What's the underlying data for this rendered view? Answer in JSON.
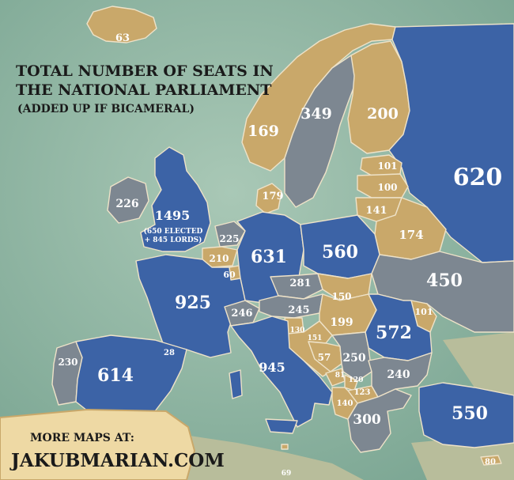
{
  "title": {
    "line1": "TOTAL NUMBER OF SEATS IN",
    "line2": "THE NATIONAL PARLIAMENT",
    "line3": "(ADDED UP IF BICAMERAL)"
  },
  "footer": {
    "line1": "MORE MAPS AT:",
    "line2": "JAKUBMARIAN.COM"
  },
  "colors": {
    "sea": "#8fb5a3",
    "land_gray": "#b9bfa0",
    "tan": "#c9a86a",
    "slate": "#7d8791",
    "blue": "#3c63a6",
    "border": "#e8dcc4"
  },
  "countries": [
    {
      "name": "Iceland",
      "value": "63",
      "class": "tan"
    },
    {
      "name": "Norway",
      "value": "169",
      "class": "tan"
    },
    {
      "name": "Sweden",
      "value": "349",
      "class": "slate"
    },
    {
      "name": "Finland",
      "value": "200",
      "class": "tan"
    },
    {
      "name": "Russia",
      "value": "620",
      "class": "blue"
    },
    {
      "name": "Estonia",
      "value": "101",
      "class": "tan"
    },
    {
      "name": "Latvia",
      "value": "100",
      "class": "tan"
    },
    {
      "name": "Lithuania",
      "value": "141",
      "class": "tan"
    },
    {
      "name": "Belarus",
      "value": "174",
      "class": "tan"
    },
    {
      "name": "Ireland",
      "value": "226",
      "class": "slate"
    },
    {
      "name": "United Kingdom",
      "value": "1495",
      "class": "blue",
      "note1": "(650 ELECTED",
      "note2": "+ 845 LORDS)"
    },
    {
      "name": "Denmark",
      "value": "179",
      "class": "tan"
    },
    {
      "name": "Netherlands",
      "value": "225",
      "class": "slate"
    },
    {
      "name": "Belgium",
      "value": "210",
      "class": "tan"
    },
    {
      "name": "Luxembourg",
      "value": "60",
      "class": "tan"
    },
    {
      "name": "Germany",
      "value": "631",
      "class": "blue"
    },
    {
      "name": "Poland",
      "value": "560",
      "class": "blue"
    },
    {
      "name": "Ukraine",
      "value": "450",
      "class": "slate"
    },
    {
      "name": "France",
      "value": "925",
      "class": "blue"
    },
    {
      "name": "Czechia",
      "value": "281",
      "class": "slate"
    },
    {
      "name": "Slovakia",
      "value": "150",
      "class": "tan"
    },
    {
      "name": "Switzerland",
      "value": "246",
      "class": "slate"
    },
    {
      "name": "Austria",
      "value": "245",
      "class": "slate"
    },
    {
      "name": "Hungary",
      "value": "199",
      "class": "tan"
    },
    {
      "name": "Moldova",
      "value": "101",
      "class": "tan"
    },
    {
      "name": "Romania",
      "value": "572",
      "class": "blue"
    },
    {
      "name": "Slovenia",
      "value": "130",
      "class": "tan"
    },
    {
      "name": "Croatia",
      "value": "151",
      "class": "tan"
    },
    {
      "name": "Andorra",
      "value": "28",
      "class": "tan"
    },
    {
      "name": "Portugal",
      "value": "230",
      "class": "slate"
    },
    {
      "name": "Spain",
      "value": "614",
      "class": "blue"
    },
    {
      "name": "Italy",
      "value": "945",
      "class": "blue"
    },
    {
      "name": "Bosnia",
      "value": "57",
      "class": "tan"
    },
    {
      "name": "Serbia",
      "value": "250",
      "class": "slate"
    },
    {
      "name": "Montenegro",
      "value": "81",
      "class": "tan"
    },
    {
      "name": "Kosovo",
      "value": "120",
      "class": "tan"
    },
    {
      "name": "North Macedonia",
      "value": "123",
      "class": "tan"
    },
    {
      "name": "Albania",
      "value": "140",
      "class": "tan"
    },
    {
      "name": "Bulgaria",
      "value": "240",
      "class": "slate"
    },
    {
      "name": "Greece",
      "value": "300",
      "class": "slate"
    },
    {
      "name": "Turkey",
      "value": "550",
      "class": "blue"
    },
    {
      "name": "Malta",
      "value": "69",
      "class": "tan"
    },
    {
      "name": "Cyprus",
      "value": "80",
      "class": "tan"
    }
  ]
}
